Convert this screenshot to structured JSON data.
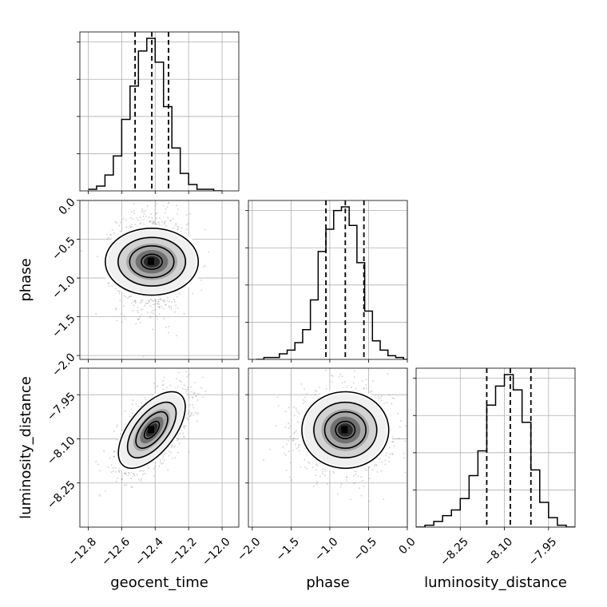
{
  "chart_data": {
    "type": "corner",
    "parameters": [
      "geocent_time",
      "phase",
      "luminosity_distance"
    ],
    "grid": true,
    "marginals": [
      {
        "parameter": "geocent_time",
        "range": [
          -12.85,
          -11.9
        ],
        "bin_edges": [
          -12.8,
          -12.75,
          -12.7,
          -12.65,
          -12.6,
          -12.55,
          -12.5,
          -12.45,
          -12.4,
          -12.35,
          -12.3,
          -12.25,
          -12.2,
          -12.15,
          -12.1,
          -12.05,
          -12.0
        ],
        "counts": [
          1,
          3,
          10,
          22,
          45,
          66,
          88,
          96,
          81,
          53,
          27,
          11,
          4,
          1,
          1,
          0
        ],
        "quantiles": [
          -12.52,
          -12.42,
          -12.32
        ],
        "ticks": [
          -12.8,
          -12.6,
          -12.4,
          -12.2,
          -12.0
        ],
        "tick_labels": [
          "−12.8",
          "−12.6",
          "−12.4",
          "−12.2",
          "−12.0"
        ]
      },
      {
        "parameter": "phase",
        "range": [
          -2.05,
          0.0
        ],
        "bin_edges": [
          -1.95,
          -1.85,
          -1.75,
          -1.65,
          -1.55,
          -1.45,
          -1.35,
          -1.25,
          -1.15,
          -1.05,
          -0.95,
          -0.85,
          -0.75,
          -0.65,
          -0.55,
          -0.45,
          -0.35,
          -0.25,
          -0.15,
          -0.05,
          0.0
        ],
        "counts": [
          0,
          1,
          1,
          3,
          5,
          9,
          16,
          32,
          58,
          70,
          80,
          82,
          72,
          52,
          26,
          10,
          5,
          2,
          1,
          0
        ],
        "quantiles": [
          -1.05,
          -0.8,
          -0.56
        ],
        "ticks": [
          -2.0,
          -1.5,
          -1.0,
          -0.5,
          0.0
        ],
        "tick_labels": [
          "−2.0",
          "−1.5",
          "−1.0",
          "−0.5",
          "0.0"
        ]
      },
      {
        "parameter": "luminosity_distance",
        "range": [
          -8.4,
          -7.86
        ],
        "bin_edges": [
          -8.4,
          -8.37,
          -8.34,
          -8.31,
          -8.28,
          -8.25,
          -8.22,
          -8.19,
          -8.16,
          -8.13,
          -8.1,
          -8.07,
          -8.04,
          -8.01,
          -7.98,
          -7.95,
          -7.92,
          -7.89,
          -7.86
        ],
        "counts": [
          0,
          1,
          3,
          6,
          9,
          15,
          27,
          40,
          64,
          74,
          80,
          72,
          55,
          30,
          13,
          5,
          1,
          0
        ],
        "quantiles": [
          -8.16,
          -8.08,
          -8.01
        ],
        "ticks": [
          -8.25,
          -8.1,
          -7.95
        ],
        "tick_labels": [
          "−8.25",
          "−8.10",
          "−7.95"
        ]
      }
    ],
    "joints": [
      {
        "x": "geocent_time",
        "y": "phase",
        "center": [
          -12.42,
          -0.79
        ],
        "sigma": [
          0.1,
          0.3
        ],
        "correlation": 0.0
      },
      {
        "x": "geocent_time",
        "y": "luminosity_distance",
        "center": [
          -12.42,
          -8.07
        ],
        "sigma": [
          0.1,
          0.065
        ],
        "correlation": 0.6
      },
      {
        "x": "phase",
        "y": "luminosity_distance",
        "center": [
          -0.8,
          -8.07
        ],
        "sigma": [
          0.28,
          0.065
        ],
        "correlation": 0.0
      }
    ],
    "phase_ticks_vertical": [
      0.0,
      -0.5,
      -1.0,
      -1.5,
      -2.0
    ],
    "phase_tick_labels_vertical": [
      "0.0",
      "−0.5",
      "−1.0",
      "−1.5",
      "−2.0"
    ],
    "lumdist_ticks_vertical": [
      -7.95,
      -8.1,
      -8.25
    ],
    "lumdist_tick_labels_vertical": [
      "−7.95",
      "−8.10",
      "−8.25"
    ]
  }
}
